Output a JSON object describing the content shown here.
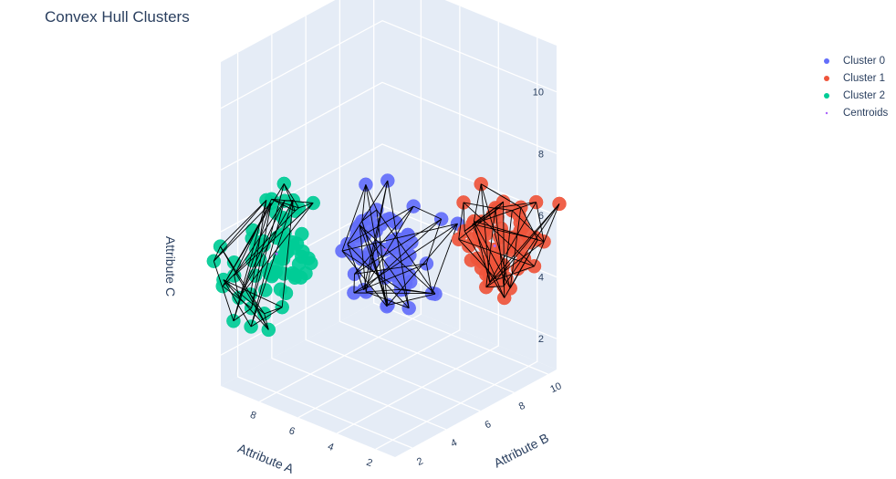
{
  "chart_data": {
    "type": "scatter3d",
    "title": "Convex Hull Clusters",
    "axes": {
      "x": {
        "label": "Attribute A",
        "ticks": [
          "2",
          "4",
          "6",
          "8"
        ],
        "range": [
          1,
          10
        ]
      },
      "y": {
        "label": "Attribute B",
        "ticks": [
          "2",
          "4",
          "6",
          "8",
          "10"
        ],
        "range": [
          1,
          10.5
        ]
      },
      "z": {
        "label": "Attribute C",
        "ticks": [
          "2",
          "4",
          "6",
          "8",
          "10"
        ],
        "range": [
          1,
          11.5
        ]
      }
    },
    "grid": true,
    "legend_position": "top-right",
    "series": [
      {
        "name": "Cluster 0",
        "color": "#636efa",
        "center": [
          5.0,
          5.0,
          5.5
        ],
        "spread": [
          0.9,
          0.9,
          0.9
        ],
        "count": 70
      },
      {
        "name": "Cluster 1",
        "color": "#ef553b",
        "center": [
          2.0,
          8.0,
          5.5
        ],
        "spread": [
          0.9,
          0.9,
          0.9
        ],
        "count": 70
      },
      {
        "name": "Cluster 2",
        "color": "#00cc96",
        "center": [
          8.0,
          2.0,
          5.5
        ],
        "spread": [
          0.9,
          0.9,
          0.9
        ],
        "count": 70
      },
      {
        "name": "Centroids",
        "color": "#ab63fa",
        "points": [
          [
            5.0,
            5.0,
            5.5
          ],
          [
            2.0,
            8.0,
            5.5
          ],
          [
            8.0,
            2.0,
            5.5
          ]
        ]
      }
    ]
  }
}
